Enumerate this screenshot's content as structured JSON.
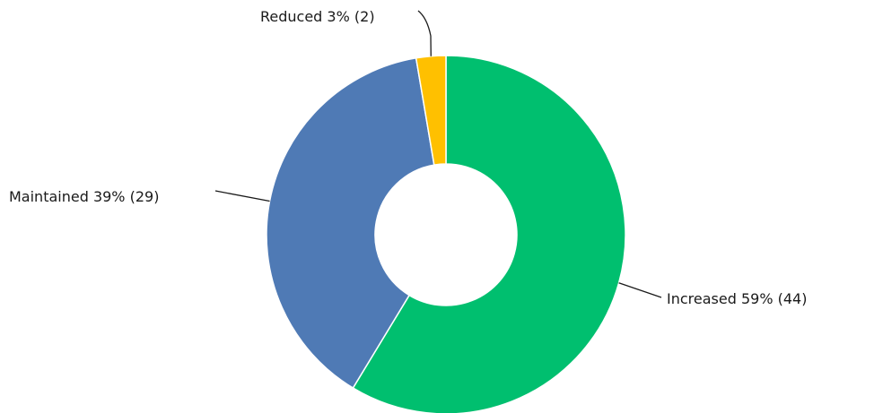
{
  "chart_data": {
    "type": "pie",
    "donut": true,
    "title": "",
    "legend": "none",
    "slices": [
      {
        "label": "Increased",
        "percent": "59%",
        "count": 44,
        "color": "#00BF6F",
        "label_text": "Increased  59% (44)"
      },
      {
        "label": "Maintained",
        "percent": "39%",
        "count": 29,
        "color": "#4F7AB5",
        "label_text": "Maintained  39% (29)"
      },
      {
        "label": "Reduced",
        "percent": "3%",
        "count": 2,
        "color": "#FFC000",
        "label_text": "Reduced  3% (2)"
      }
    ]
  }
}
